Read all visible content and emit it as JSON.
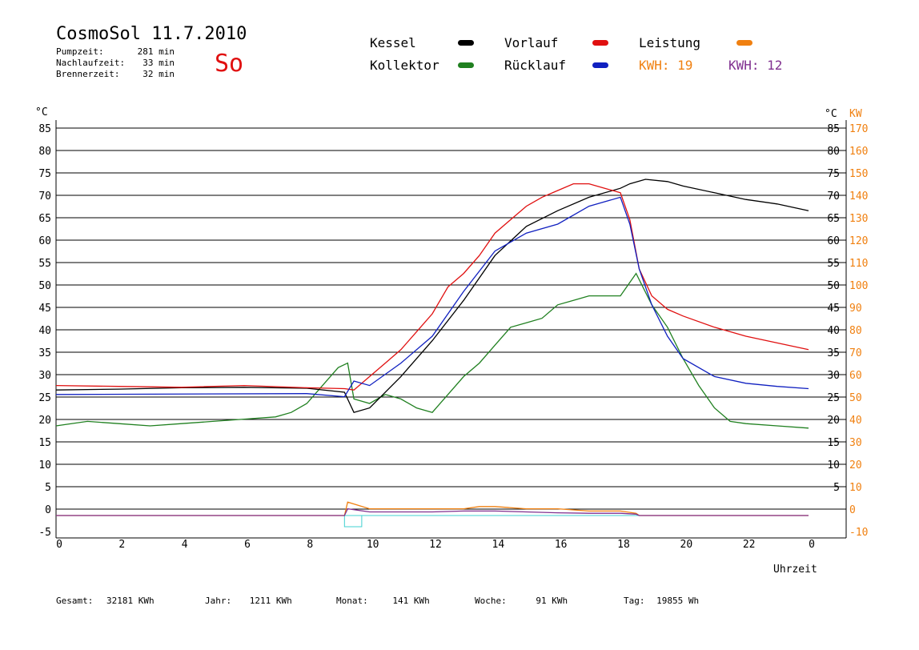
{
  "header": {
    "title": "CosmoSol 11.7.2010",
    "weekday": "So",
    "pump_label": "Pumpzeit:",
    "pump_value": "281 min",
    "after_label": "Nachlaufzeit:",
    "after_value": "33 min",
    "burner_label": "Brennerzeit:",
    "burner_value": "32 min"
  },
  "legend": {
    "kessel": "Kessel",
    "kollektor": "Kollektor",
    "vorlauf": "Vorlauf",
    "ruecklauf": "Rücklauf",
    "leistung": "Leistung",
    "kwh1": "KWH: 19",
    "kwh2": "KWH: 12"
  },
  "colors": {
    "kessel": "#000000",
    "kollektor": "#208020",
    "vorlauf": "#e01010",
    "ruecklauf": "#1020c0",
    "leistung": "#f08010",
    "kwh2": "#803090",
    "cyan": "#40d0d0"
  },
  "footer": {
    "gesamt_label": "Gesamt:",
    "gesamt_value": "32181 KWh",
    "jahr_label": "Jahr:",
    "jahr_value": "1211 KWh",
    "monat_label": "Monat:",
    "monat_value": "141 KWh",
    "woche_label": "Woche:",
    "woche_value": "91 KWh",
    "tag_label": "Tag:",
    "tag_value": "19855 Wh"
  },
  "chart_data": {
    "type": "line",
    "title": "CosmoSol 11.7.2010",
    "xlabel": "Uhrzeit",
    "ylabel": "°C",
    "ylabel_right": "KW",
    "xlim": [
      0,
      24
    ],
    "ylim": [
      -5,
      85
    ],
    "ylim_right": [
      -10,
      170
    ],
    "x_ticks": [
      "0",
      "2",
      "4",
      "6",
      "8",
      "10",
      "12",
      "14",
      "16",
      "18",
      "20",
      "22",
      "0"
    ],
    "y_ticks_left": [
      "85",
      "80",
      "75",
      "70",
      "65",
      "60",
      "55",
      "50",
      "45",
      "40",
      "35",
      "30",
      "25",
      "20",
      "15",
      "10",
      "5",
      "0",
      "-5"
    ],
    "y_ticks_right_c": [
      "85",
      "80",
      "75",
      "70",
      "65",
      "60",
      "55",
      "50",
      "45",
      "40",
      "35",
      "30",
      "25",
      "20",
      "15",
      "10",
      "5"
    ],
    "y_ticks_right_kw": [
      "170",
      "160",
      "150",
      "140",
      "130",
      "120",
      "110",
      "100",
      "90",
      "80",
      "70",
      "60",
      "50",
      "40",
      "30",
      "20",
      "10",
      "0",
      "-10"
    ],
    "grid": "horizontal",
    "series": [
      {
        "name": "Kessel",
        "color": "#000000",
        "x": [
          0,
          2,
          4,
          6,
          8,
          9.2,
          9.5,
          10,
          11,
          12,
          13,
          14,
          15,
          16,
          17,
          18,
          18.3,
          18.8,
          19.5,
          20,
          21,
          22,
          23,
          24
        ],
        "y": [
          28,
          28.2,
          28.5,
          28.6,
          28.4,
          27.5,
          23,
          24,
          31,
          39,
          48,
          58,
          64.5,
          68,
          71,
          73,
          74,
          75,
          74.5,
          73.5,
          72,
          70.5,
          69.5,
          68
        ]
      },
      {
        "name": "Vorlauf",
        "color": "#e01010",
        "x": [
          0,
          2,
          4,
          6,
          8,
          9.2,
          9.5,
          10,
          10.5,
          11,
          11.5,
          12,
          12.5,
          13,
          13.5,
          14,
          14.5,
          15,
          15.5,
          16,
          16.5,
          17,
          17.5,
          18,
          18.3,
          18.6,
          19,
          19.5,
          20,
          21,
          22,
          23,
          24
        ],
        "y": [
          29,
          28.8,
          28.6,
          29,
          28.5,
          28.3,
          28,
          31,
          34,
          37,
          41,
          45,
          51,
          54,
          58,
          63,
          66,
          69,
          71,
          72.5,
          74,
          74,
          73,
          72,
          66,
          55,
          49,
          46,
          44.5,
          42,
          40,
          38.5,
          37
        ]
      },
      {
        "name": "Rücklauf",
        "color": "#1020c0",
        "x": [
          0,
          8,
          9.2,
          9.5,
          10,
          11,
          12,
          13,
          14,
          15,
          16,
          17,
          18,
          18.3,
          18.6,
          19,
          19.5,
          20,
          21,
          22,
          23,
          24
        ],
        "y": [
          27,
          27.2,
          26.5,
          30,
          29,
          34,
          40,
          50,
          59,
          63,
          65,
          69,
          71,
          65,
          55,
          47,
          40,
          35,
          31,
          29.5,
          28.8,
          28.3
        ]
      },
      {
        "name": "Kollektor",
        "color": "#208020",
        "x": [
          0,
          1,
          2,
          3,
          4,
          5,
          6,
          7,
          7.5,
          8,
          8.5,
          9,
          9.3,
          9.5,
          10,
          10.5,
          11,
          11.5,
          12,
          12.5,
          13,
          13.5,
          14,
          14.5,
          15,
          15.5,
          16,
          16.5,
          17,
          17.5,
          18,
          18.5,
          19,
          19.5,
          20,
          20.5,
          21,
          21.5,
          22,
          23,
          24
        ],
        "y": [
          20,
          21,
          20.5,
          20,
          20.5,
          21,
          21.5,
          22,
          23,
          25,
          29,
          33,
          34,
          26,
          25,
          27,
          26,
          24,
          23,
          27,
          31,
          34,
          38,
          42,
          43,
          44,
          47,
          48,
          49,
          49,
          49,
          54,
          47,
          42,
          35,
          29,
          24,
          21,
          20.5,
          20,
          19.5
        ]
      },
      {
        "name": "Leistung",
        "color": "#f08010",
        "x": [
          0,
          9.2,
          9.3,
          10,
          11,
          12,
          13,
          13.5,
          14,
          15,
          16,
          17,
          18,
          18.5,
          18.6,
          24
        ],
        "y": [
          0,
          0,
          3,
          1.5,
          1.5,
          1.5,
          1.5,
          2,
          2,
          1.5,
          1.5,
          1,
          1,
          0.5,
          0,
          0
        ]
      },
      {
        "name": "KWH: 12",
        "color": "#803090",
        "x": [
          0,
          9.2,
          9.3,
          10,
          11,
          12,
          13,
          14,
          15,
          16,
          17,
          18,
          18.5,
          18.6,
          24
        ],
        "y": [
          0,
          0,
          1.5,
          0.8,
          0.8,
          0.8,
          1,
          1,
          0.8,
          0.6,
          0.5,
          0.5,
          0.3,
          0,
          0
        ]
      }
    ]
  }
}
